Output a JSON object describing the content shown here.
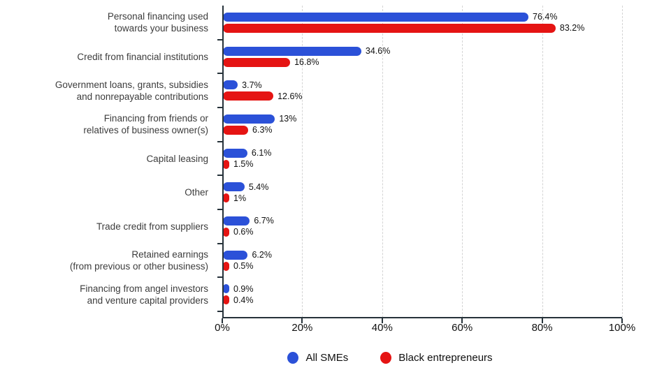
{
  "chart_data": {
    "type": "bar",
    "orientation": "horizontal",
    "categories": [
      "Personal financing used\ntowards your business",
      "Credit from financial institutions",
      "Government loans, grants, subsidies\nand nonrepayable contributions",
      "Financing from friends or\nrelatives of business owner(s)",
      "Capital leasing",
      "Other",
      "Trade credit from suppliers",
      "Retained earnings\n(from previous or other business)",
      "Financing from angel investors\nand venture capital providers"
    ],
    "series": [
      {
        "name": "All SMEs",
        "color": "#2b51d8",
        "values": [
          76.4,
          34.6,
          3.7,
          13,
          6.1,
          5.4,
          6.7,
          6.2,
          0.9
        ],
        "labels": [
          "76.4%",
          "34.6%",
          "3.7%",
          "13%",
          "6.1%",
          "5.4%",
          "6.7%",
          "6.2%",
          "0.9%"
        ]
      },
      {
        "name": "Black entrepreneurs",
        "color": "#e51413",
        "values": [
          83.2,
          16.8,
          12.6,
          6.3,
          1.5,
          1,
          0.6,
          0.5,
          0.4
        ],
        "labels": [
          "83.2%",
          "16.8%",
          "12.6%",
          "6.3%",
          "1.5%",
          "1%",
          "0.6%",
          "0.5%",
          "0.4%"
        ]
      }
    ],
    "x_axis": {
      "min": 0,
      "max": 100,
      "tick_values": [
        0,
        20,
        40,
        60,
        80,
        100
      ],
      "tick_labels": [
        "0%",
        "20%",
        "40%",
        "60%",
        "80%",
        "100%"
      ]
    },
    "grid": "dashed vertical gridlines at 20% intervals",
    "legend_position": "bottom"
  },
  "legend": {
    "items": [
      {
        "label": "All SMEs",
        "color": "#2b51d8"
      },
      {
        "label": "Black entrepreneurs",
        "color": "#e51413"
      }
    ]
  },
  "colors": {
    "axis": "#26323a",
    "gridline": "#d4d4d4",
    "category_text": "#3c3c3c",
    "value_text": "#101010",
    "background": "#ffffff"
  }
}
